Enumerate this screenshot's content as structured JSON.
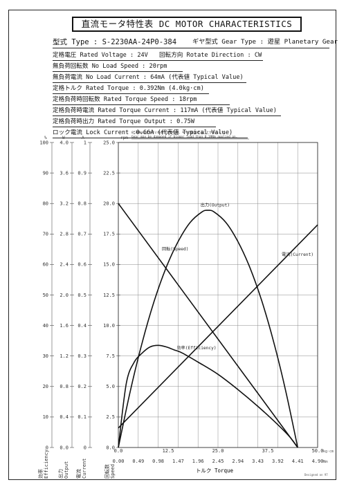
{
  "header": {
    "title": "直流モータ特性表 DC MOTOR CHARACTERISTICS",
    "type_line": "型式 Type : S-2230AA-24P0-384",
    "gear_line": "ギヤ型式 Gear Type : 遊星 Planetary Gear"
  },
  "specs": {
    "rated_voltage": "定格電圧 Rated Voltage : 24V",
    "rotate_direction": "回転方向 Rotate Direction : CW",
    "no_load_speed": "無負荷回転数 No Load Speed : 20rpm",
    "no_load_current": "無負荷電流 No Load Current : 64mA (代表値 Typical Value)",
    "rated_torque": "定格トルク Rated Torque : 0.392Nm (4.0kg·cm)",
    "rated_torque_speed": "定格負荷時回転数 Rated Torque Speed : 18rpm",
    "rated_torque_current": "定格負荷時電流 Rated Torque Current : 117mA (代表値 Typical Value)",
    "rated_torque_output": "定格負荷時出力 Rated Torque Output : 0.75W",
    "lock_current": "ロック電流 Lock Current :0.66A (代表値 Typical Value)"
  },
  "warning": {
    "jp": "0.39Nm以上大きい負荷がかかると、ギヤが破損することがあります。",
    "en": "Gear may be damaged if bigger load than 0.39Nm applied on."
  },
  "footer": {
    "signature": "Designed on 97"
  },
  "chart_data": {
    "type": "line",
    "xlabel": "トルク Torque",
    "x_units": [
      "kg·cm",
      "Nm"
    ],
    "x_ticks_kgcm": [
      "0.0",
      "12.5",
      "25.0",
      "37.5",
      "50.0"
    ],
    "x_ticks_nm": [
      "0.00",
      "0.49",
      "0.98",
      "1.47",
      "1.96",
      "2.45",
      "2.94",
      "3.43",
      "3.92",
      "4.41",
      "4.90"
    ],
    "xlim_kgcm": [
      0,
      50
    ],
    "grid": true,
    "axes": [
      {
        "id": "efficiency",
        "label": "効率 Efficiency",
        "unit": "%",
        "ticks": [
          "0",
          "10",
          "20",
          "30",
          "40",
          "50",
          "60",
          "70",
          "80",
          "90",
          "100"
        ],
        "range": [
          0,
          100
        ]
      },
      {
        "id": "output",
        "label": "出力 Output",
        "unit": "W",
        "ticks": [
          "0.0",
          "0.4",
          "0.8",
          "1.2",
          "1.6",
          "2.0",
          "2.4",
          "2.8",
          "3.2",
          "3.6",
          "4.0"
        ],
        "range": [
          0,
          4.0
        ]
      },
      {
        "id": "current",
        "label": "電流 Current",
        "unit": "A",
        "ticks": [
          "0",
          "0.1",
          "0.2",
          "0.3",
          "0.4",
          "0.5",
          "0.6",
          "0.7",
          "0.8",
          "0.9",
          "1"
        ],
        "range": [
          0,
          1
        ]
      },
      {
        "id": "speed",
        "label": "回転数 Speed",
        "unit": "rpm",
        "ticks": [
          "0.0",
          "2.5",
          "5.0",
          "7.5",
          "10.0",
          "12.5",
          "15.0",
          "17.5",
          "20.0",
          "22.5",
          "25.0"
        ],
        "range": [
          0,
          25
        ]
      }
    ],
    "series": [
      {
        "name": "回転(Speed)",
        "axis": "speed",
        "color": "#111111",
        "x": [
          0,
          45
        ],
        "y": [
          20,
          0
        ]
      },
      {
        "name": "電流(Current)",
        "axis": "current",
        "color": "#111111",
        "x": [
          0,
          50
        ],
        "y": [
          0.064,
          0.73
        ]
      },
      {
        "name": "出力(Output)",
        "axis": "output",
        "color": "#111111",
        "x": [
          0,
          3,
          6,
          9,
          12,
          15,
          18,
          21,
          22.5,
          24,
          27,
          30,
          33,
          36,
          39,
          42,
          45
        ],
        "y": [
          0,
          0.74,
          1.38,
          1.92,
          2.36,
          2.7,
          2.95,
          3.09,
          3.11,
          3.09,
          2.95,
          2.7,
          2.36,
          1.92,
          1.38,
          0.74,
          0
        ]
      },
      {
        "name": "効率(Efficiency)",
        "axis": "efficiency",
        "color": "#111111",
        "x": [
          0,
          2,
          4,
          6,
          8,
          10,
          12,
          14,
          16,
          20,
          25,
          30,
          35,
          40,
          43,
          45
        ],
        "y": [
          0,
          21,
          28,
          31,
          33,
          33.5,
          33,
          32,
          31,
          28,
          24,
          19,
          13.5,
          7.5,
          3.5,
          0
        ]
      }
    ]
  }
}
